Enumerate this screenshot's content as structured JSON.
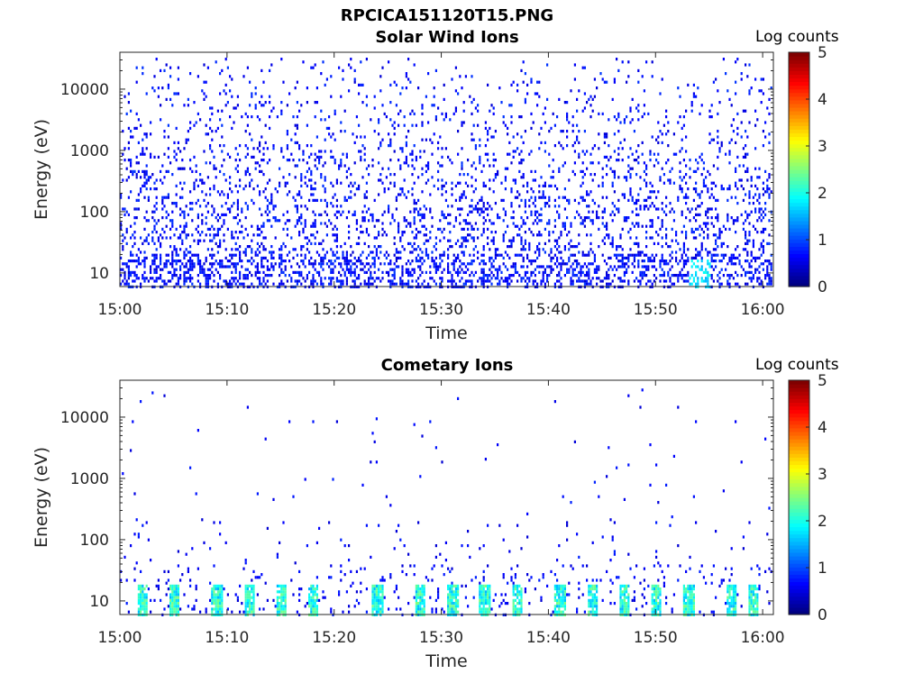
{
  "figure": {
    "file_title": "RPCICA151120T15.PNG"
  },
  "chart_data": [
    {
      "type": "heatmap",
      "title": "Solar Wind Ions",
      "xlabel": "Time",
      "ylabel": "Energy (eV)",
      "x_ticks": [
        "15:00",
        "15:10",
        "15:20",
        "15:30",
        "15:40",
        "15:50",
        "16:00"
      ],
      "y_ticks": [
        "10",
        "100",
        "1000",
        "10000"
      ],
      "y_scale": "log",
      "ylim": [
        6,
        40000
      ],
      "xlim": [
        "15:00",
        "16:01"
      ],
      "colorbar": {
        "label": "Log counts",
        "ticks": [
          "0",
          "1",
          "2",
          "3",
          "4",
          "5"
        ],
        "range": [
          0,
          5
        ],
        "colormap": "jet"
      },
      "description_of_values": "Sparse counts mostly 0-1 (dark blue) scattered across 10 eV to 30 keV; denser bands below 30 eV; brief values up to ~1.5 near 15:54."
    },
    {
      "type": "heatmap",
      "title": "Cometary Ions",
      "xlabel": "Time",
      "ylabel": "Energy (eV)",
      "x_ticks": [
        "15:00",
        "15:10",
        "15:20",
        "15:30",
        "15:40",
        "15:50",
        "16:00"
      ],
      "y_ticks": [
        "10",
        "100",
        "1000",
        "10000"
      ],
      "y_scale": "log",
      "ylim": [
        6,
        40000
      ],
      "xlim": [
        "15:00",
        "16:01"
      ],
      "colorbar": {
        "label": "Log counts",
        "ticks": [
          "0",
          "1",
          "2",
          "3",
          "4",
          "5"
        ],
        "range": [
          0,
          5
        ],
        "colormap": "jet"
      },
      "hot_times": [
        "15:02",
        "15:05",
        "15:09",
        "15:12",
        "15:15",
        "15:18",
        "15:24",
        "15:28",
        "15:31",
        "15:34",
        "15:37",
        "15:41",
        "15:44",
        "15:47",
        "15:50",
        "15:53",
        "15:57",
        "15:59"
      ],
      "description_of_values": "Recurring bursts at 7-20 eV reaching log counts ~2-2.5; sparse points above 100 eV."
    }
  ]
}
